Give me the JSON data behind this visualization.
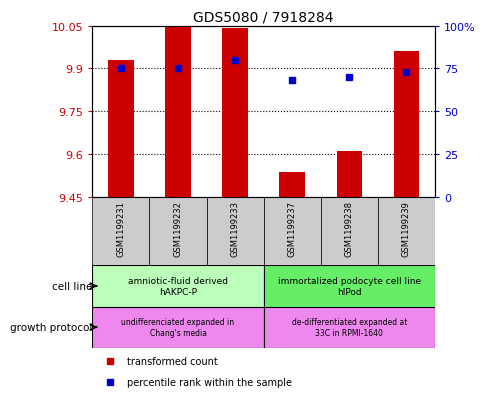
{
  "title": "GDS5080 / 7918284",
  "samples": [
    "GSM1199231",
    "GSM1199232",
    "GSM1199233",
    "GSM1199237",
    "GSM1199238",
    "GSM1199239"
  ],
  "bar_values": [
    9.93,
    10.045,
    10.04,
    9.535,
    9.61,
    9.96
  ],
  "bar_base": 9.45,
  "percentile_values": [
    75,
    75,
    80,
    68,
    70,
    73
  ],
  "ylim_left": [
    9.45,
    10.05
  ],
  "ylim_right": [
    0,
    100
  ],
  "yticks_left": [
    9.45,
    9.6,
    9.75,
    9.9,
    10.05
  ],
  "yticks_right": [
    0,
    25,
    50,
    75,
    100
  ],
  "ytick_labels_left": [
    "9.45",
    "9.6",
    "9.75",
    "9.9",
    "10.05"
  ],
  "ytick_labels_right": [
    "0",
    "25",
    "50",
    "75",
    "100%"
  ],
  "bar_color": "#cc0000",
  "dot_color": "#0000cc",
  "cell_line_labels": [
    "amniotic-fluid derived\nhAKPC-P",
    "immortalized podocyte cell line\nhIPod"
  ],
  "cell_line_colors": [
    "#bbffbb",
    "#66ee66"
  ],
  "growth_protocol_labels": [
    "undifferenciated expanded in\nChang's media",
    "de-differentiated expanded at\n33C in RPMI-1640"
  ],
  "growth_protocol_color": "#ee88ee",
  "sample_bg_color": "#cccccc",
  "legend_tc_label": "transformed count",
  "legend_pr_label": "percentile rank within the sample",
  "cell_line_row_label": "cell line",
  "growth_protocol_row_label": "growth protocol",
  "title_fontsize": 10,
  "tick_fontsize": 8,
  "sample_fontsize": 6,
  "label_fontsize": 7.5
}
